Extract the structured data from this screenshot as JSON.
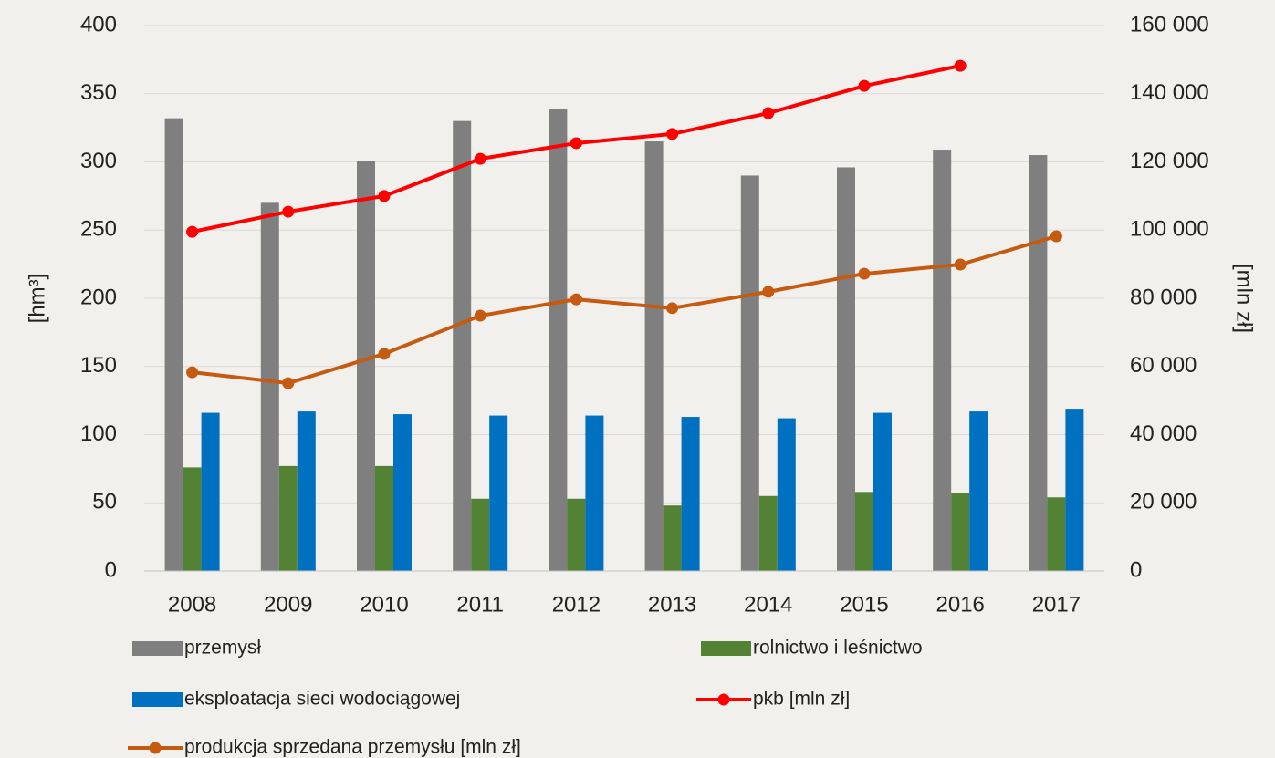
{
  "chart_data": {
    "type": "bar_line",
    "categories": [
      "2008",
      "2009",
      "2010",
      "2011",
      "2012",
      "2013",
      "2014",
      "2015",
      "2016",
      "2017"
    ],
    "series": [
      {
        "name": "przemysł",
        "type": "bar",
        "color": "#7f7f7f",
        "values": [
          332,
          270,
          301,
          330,
          339,
          315,
          290,
          296,
          309,
          305
        ]
      },
      {
        "name": "rolnictwo i leśnictwo",
        "type": "bar",
        "color": "#548235",
        "values": [
          76,
          77,
          77,
          53,
          53,
          48,
          55,
          58,
          57,
          54
        ]
      },
      {
        "name": "eksploatacja sieci wodociągowej",
        "type": "bar",
        "color": "#0070c0",
        "values": [
          116,
          117,
          115,
          114,
          114,
          113,
          112,
          116,
          117,
          119
        ]
      },
      {
        "name": "pkb [mln zł]",
        "type": "line",
        "axis": "y2",
        "color": "#ff0000",
        "values": [
          99500,
          105400,
          110000,
          120900,
          125500,
          128200,
          134300,
          142300,
          148200,
          null
        ]
      },
      {
        "name": "produkcja sprzedana przemysłu [mln zł]",
        "type": "line",
        "axis": "y2",
        "color": "#c55a11",
        "values": [
          58300,
          55100,
          63700,
          74900,
          79700,
          77100,
          81900,
          87200,
          89900,
          98200
        ]
      }
    ],
    "ylabel": "[hm³]",
    "y2label": "[mln zł]",
    "ylim": [
      0,
      400
    ],
    "yticks": [
      0,
      50,
      100,
      150,
      200,
      250,
      300,
      350,
      400
    ],
    "y2lim": [
      0,
      160000
    ],
    "y2ticks": [
      0,
      {
        "value": 20000,
        "label": "20 000"
      },
      {
        "value": 40000,
        "label": "40 000"
      },
      {
        "value": 60000,
        "label": "60 000"
      },
      {
        "value": 80000,
        "label": "80 000"
      },
      {
        "value": 100000,
        "label": "100 000"
      },
      {
        "value": 120000,
        "label": "120 000"
      },
      {
        "value": 140000,
        "label": "140 000"
      },
      {
        "value": 160000,
        "label": "160 000"
      }
    ],
    "grid": true,
    "legend": "bottom"
  }
}
